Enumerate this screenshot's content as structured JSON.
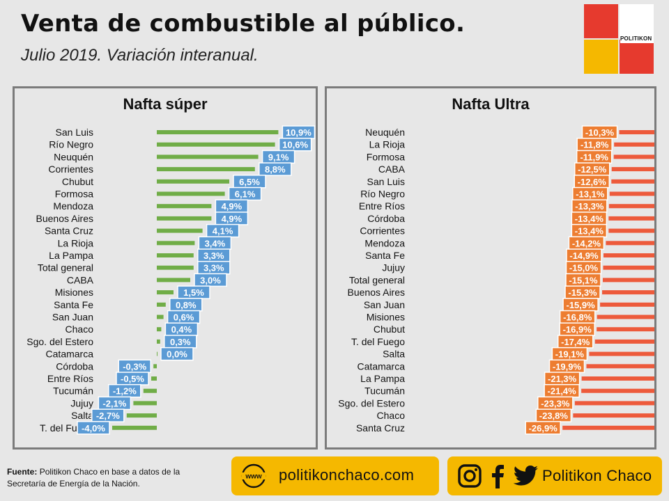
{
  "title": "Venta de combustible al público.",
  "subtitle": "Julio 2019. Variación interanual.",
  "logo_text": "POLITIKON",
  "colors": {
    "super": "#70ad47",
    "ultra": "#ed5a3b",
    "super_label": "#5b9bd5",
    "ultra_label": "#ed7d31",
    "accent": "#f5b800"
  },
  "chart_data": [
    {
      "type": "bar",
      "title": "Nafta súper",
      "orientation": "horizontal",
      "categories": [
        "San Luis",
        "Río Negro",
        "Neuquén",
        "Corrientes",
        "Chubut",
        "Formosa",
        "Mendoza",
        "Buenos Aires",
        "Santa Cruz",
        "La Rioja",
        "La Pampa",
        "Total general",
        "CABA",
        "Misiones",
        "Santa Fe",
        "San Juan",
        "Chaco",
        "Sgo. del Estero",
        "Catamarca",
        "Córdoba",
        "Entre Ríos",
        "Tucumán",
        "Jujuy",
        "Salta",
        "T. del Fuego"
      ],
      "values": [
        10.9,
        10.6,
        9.1,
        8.8,
        6.5,
        6.1,
        4.9,
        4.9,
        4.1,
        3.4,
        3.3,
        3.3,
        3.0,
        1.5,
        0.8,
        0.6,
        0.4,
        0.3,
        0.0,
        -0.3,
        -0.5,
        -1.2,
        -2.1,
        -2.7,
        -4.0
      ],
      "labels": [
        "10,9%",
        "10,6%",
        "9,1%",
        "8,8%",
        "6,5%",
        "6,1%",
        "4,9%",
        "4,9%",
        "4,1%",
        "3,4%",
        "3,3%",
        "3,3%",
        "3,0%",
        "1,5%",
        "0,8%",
        "0,6%",
        "0,4%",
        "0,3%",
        "0,0%",
        "-0,3%",
        "-0,5%",
        "-1,2%",
        "-2,1%",
        "-2,7%",
        "-4,0%"
      ]
    },
    {
      "type": "bar",
      "title": "Nafta Ultra",
      "orientation": "horizontal",
      "categories": [
        "Neuquén",
        "La Rioja",
        "Formosa",
        "CABA",
        "San Luis",
        "Río Negro",
        "Entre Ríos",
        "Córdoba",
        "Corrientes",
        "Mendoza",
        "Santa Fe",
        "Jujuy",
        "Total general",
        "Buenos Aires",
        "San Juan",
        "Misiones",
        "Chubut",
        "T. del Fuego",
        "Salta",
        "Catamarca",
        "La Pampa",
        "Tucumán",
        "Sgo. del Estero",
        "Chaco",
        "Santa Cruz"
      ],
      "values": [
        -10.3,
        -11.8,
        -11.9,
        -12.5,
        -12.6,
        -13.1,
        -13.3,
        -13.4,
        -13.4,
        -14.2,
        -14.9,
        -15.0,
        -15.1,
        -15.3,
        -15.9,
        -16.8,
        -16.9,
        -17.4,
        -19.1,
        -19.9,
        -21.3,
        -21.4,
        -23.3,
        -23.8,
        -26.9
      ],
      "labels": [
        "-10,3%",
        "-11,8%",
        "-11,9%",
        "-12,5%",
        "-12,6%",
        "-13,1%",
        "-13,3%",
        "-13,4%",
        "-13,4%",
        "-14,2%",
        "-14,9%",
        "-15,0%",
        "-15,1%",
        "-15,3%",
        "-15,9%",
        "-16,8%",
        "-16,9%",
        "-17,4%",
        "-19,1%",
        "-19,9%",
        "-21,3%",
        "-21,4%",
        "-23,3%",
        "-23,8%",
        "-26,9%"
      ]
    }
  ],
  "footer": {
    "source_label": "Fuente:",
    "source_text": "Politikon Chaco en base a datos de la Secretaría de Energía de la Nación.",
    "www_icon_text": "www",
    "website": "politikonchaco.com",
    "social_name": "Politikon Chaco",
    "social_icons": [
      "instagram-icon",
      "facebook-icon",
      "twitter-icon"
    ]
  }
}
